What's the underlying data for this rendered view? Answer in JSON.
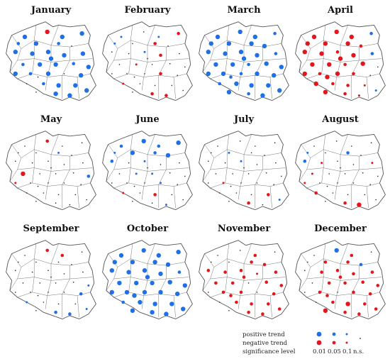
{
  "figure": {
    "months": [
      "January",
      "February",
      "March",
      "April",
      "May",
      "June",
      "July",
      "August",
      "September",
      "October",
      "November",
      "December"
    ]
  },
  "legend": {
    "positive_label": "positive trend",
    "negative_label": "negative trend",
    "significance_label": "significance level",
    "levels": [
      "0.01",
      "0.05",
      "0.1",
      "n.s."
    ],
    "colors": {
      "positive": "#1f6fe5",
      "negative": "#e3161b",
      "ns": "#222222"
    }
  },
  "stations": [
    [
      0.22,
      0.22
    ],
    [
      0.46,
      0.16
    ],
    [
      0.62,
      0.22
    ],
    [
      0.83,
      0.18
    ],
    [
      0.34,
      0.3
    ],
    [
      0.58,
      0.3
    ],
    [
      0.72,
      0.33
    ],
    [
      0.12,
      0.4
    ],
    [
      0.3,
      0.42
    ],
    [
      0.47,
      0.4
    ],
    [
      0.64,
      0.44
    ],
    [
      0.84,
      0.42
    ],
    [
      0.2,
      0.55
    ],
    [
      0.38,
      0.55
    ],
    [
      0.55,
      0.55
    ],
    [
      0.74,
      0.54
    ],
    [
      0.9,
      0.58
    ],
    [
      0.12,
      0.66
    ],
    [
      0.28,
      0.66
    ],
    [
      0.47,
      0.66
    ],
    [
      0.64,
      0.66
    ],
    [
      0.82,
      0.68
    ],
    [
      0.24,
      0.78
    ],
    [
      0.42,
      0.78
    ],
    [
      0.58,
      0.8
    ],
    [
      0.76,
      0.8
    ],
    [
      0.34,
      0.88
    ],
    [
      0.55,
      0.9
    ],
    [
      0.7,
      0.92
    ],
    [
      0.88,
      0.86
    ],
    [
      0.15,
      0.3
    ],
    [
      0.5,
      0.48
    ],
    [
      0.36,
      0.7
    ]
  ],
  "map_trends": [
    [
      "p1",
      "n1",
      "p1",
      "p1",
      "p1",
      "p2",
      "n",
      "p1",
      "p1",
      "p1",
      "p1",
      "p1",
      "p2",
      "p1",
      "p1",
      "p2",
      "p1",
      "p1",
      "p2",
      "p1",
      "n",
      "p1",
      "n",
      "p2",
      "p1",
      "p1",
      "n",
      "p1",
      "p1",
      "p1",
      "p2",
      "p1",
      "n"
    ],
    [
      "p3",
      "n",
      "p3",
      "n2",
      "n",
      "n2",
      "n",
      "n",
      "n",
      "p3",
      "n2",
      "n",
      "n",
      "n3",
      "n",
      "n",
      "n",
      "n",
      "n",
      "n",
      "n2",
      "n",
      "n3",
      "n",
      "n",
      "n",
      "n",
      "n2",
      "n2",
      "n",
      "p3",
      "n",
      "n"
    ],
    [
      "p1",
      "p1",
      "p1",
      "p2",
      "p1",
      "p1",
      "p1",
      "p1",
      "p1",
      "p1",
      "p1",
      "p2",
      "p1",
      "p1",
      "p2",
      "p1",
      "p1",
      "p1",
      "p1",
      "p2",
      "p1",
      "p1",
      "p2",
      "p1",
      "p1",
      "p1",
      "p1",
      "p2",
      "p1",
      "p1",
      "p1",
      "p1",
      "p2"
    ],
    [
      "n1",
      "n1",
      "n1",
      "p2",
      "n1",
      "n1",
      "n2",
      "n1",
      "n1",
      "n2",
      "n1",
      "p2",
      "n1",
      "n1",
      "n2",
      "n1",
      "n",
      "n1",
      "n2",
      "n1",
      "n2",
      "n",
      "n1",
      "n2",
      "n2",
      "n3",
      "n1",
      "n2",
      "n3",
      "p3",
      "n1",
      "n1",
      "n1"
    ],
    [
      "n",
      "n2",
      "n",
      "n",
      "n",
      "p3",
      "n",
      "n",
      "n",
      "n",
      "n",
      "n",
      "n1",
      "n",
      "n",
      "n",
      "p2",
      "n3",
      "n",
      "n",
      "n",
      "n",
      "n",
      "n",
      "n",
      "n",
      "n",
      "n",
      "n",
      "n",
      "n",
      "n",
      "n"
    ],
    [
      "p2",
      "p1",
      "p2",
      "p1",
      "p1",
      "p2",
      "p1",
      "p2",
      "n",
      "p3",
      "n",
      "n",
      "n",
      "p3",
      "p3",
      "n",
      "n",
      "n",
      "n",
      "n",
      "p3",
      "n",
      "n3",
      "n",
      "n2",
      "n",
      "n",
      "n",
      "p3",
      "n",
      "p3",
      "n",
      "n"
    ],
    [
      "n",
      "n",
      "n",
      "n",
      "p3",
      "n",
      "n",
      "n",
      "n",
      "p3",
      "n",
      "n",
      "n",
      "n",
      "n",
      "n",
      "n",
      "n",
      "n3",
      "n",
      "n",
      "n",
      "n",
      "n",
      "n",
      "n2",
      "n",
      "n2",
      "n",
      "p3",
      "n",
      "n",
      "n"
    ],
    [
      "n",
      "n",
      "n",
      "n",
      "n",
      "p2",
      "n",
      "p2",
      "n3",
      "n",
      "n",
      "n3",
      "n3",
      "n",
      "n",
      "n",
      "n",
      "n3",
      "n",
      "n",
      "n",
      "n",
      "n2",
      "n",
      "n",
      "n",
      "n",
      "n2",
      "n1",
      "n",
      "p3",
      "n",
      "n"
    ],
    [
      "n",
      "n2",
      "n2",
      "n",
      "n",
      "n",
      "n",
      "n",
      "n",
      "n",
      "n",
      "n",
      "n",
      "n",
      "n",
      "n",
      "p3",
      "n",
      "n",
      "n",
      "n",
      "p2",
      "p3",
      "n",
      "n",
      "n",
      "n",
      "p2",
      "p2",
      "p3",
      "n",
      "n",
      "n"
    ],
    [
      "p1",
      "p1",
      "p1",
      "p1",
      "p1",
      "p1",
      "p1",
      "p1",
      "p1",
      "p1",
      "p1",
      "p2",
      "p1",
      "p1",
      "p1",
      "p1",
      "p1",
      "p1",
      "p1",
      "p1",
      "p1",
      "p1",
      "p2",
      "p1",
      "p1",
      "p1",
      "p1",
      "p1",
      "p1",
      "p1",
      "p1",
      "p1",
      "p1"
    ],
    [
      "n",
      "n",
      "n2",
      "n",
      "n",
      "n2",
      "n2",
      "n2",
      "n2",
      "n2",
      "n3",
      "n2",
      "n2",
      "n2",
      "n",
      "n2",
      "n2",
      "n",
      "n2",
      "n2",
      "n",
      "n2",
      "n",
      "n2",
      "n2",
      "n2",
      "n",
      "n2",
      "n2",
      "n2",
      "n",
      "n2",
      "n2"
    ],
    [
      "n",
      "p1",
      "n2",
      "n",
      "n2",
      "n2",
      "p2",
      "n",
      "n2",
      "n2",
      "n2",
      "n2",
      "n",
      "n2",
      "n2",
      "n2",
      "n2",
      "n",
      "n2",
      "n",
      "n2",
      "n2",
      "n",
      "n2",
      "n1",
      "n2",
      "n1",
      "n2",
      "n2",
      "n2",
      "n",
      "n2",
      "n2"
    ]
  ]
}
